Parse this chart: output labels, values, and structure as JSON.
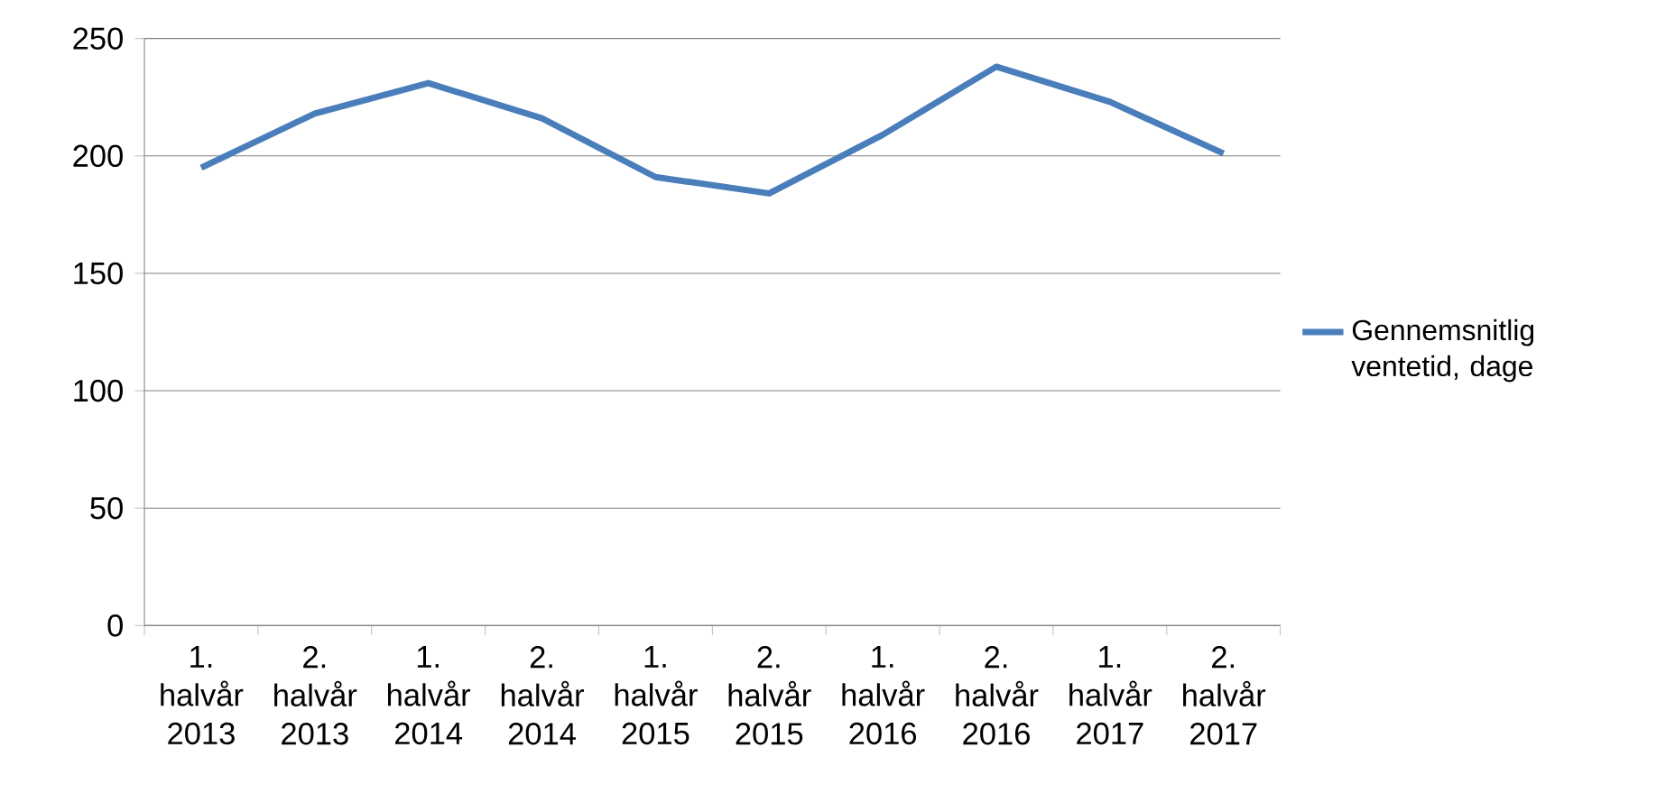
{
  "chart_data": {
    "type": "line",
    "categories": [
      "1. halvår 2013",
      "2. halvår 2013",
      "1. halvår 2014",
      "2. halvår 2014",
      "1. halvår 2015",
      "2. halvår 2015",
      "1. halvår 2016",
      "2. halvår 2016",
      "1. halvår 2017",
      "2. halvår 2017"
    ],
    "series": [
      {
        "name": "Gennemsnitlig ventetid, dage",
        "color": "#4a7ebb",
        "values": [
          195,
          218,
          231,
          216,
          191,
          184,
          209,
          238,
          223,
          201
        ]
      }
    ],
    "ylim": [
      0,
      250
    ],
    "yticks": [
      0,
      50,
      100,
      150,
      200,
      250
    ],
    "grid": "y",
    "legend": "right",
    "marker": "none",
    "line_style": "solid"
  }
}
